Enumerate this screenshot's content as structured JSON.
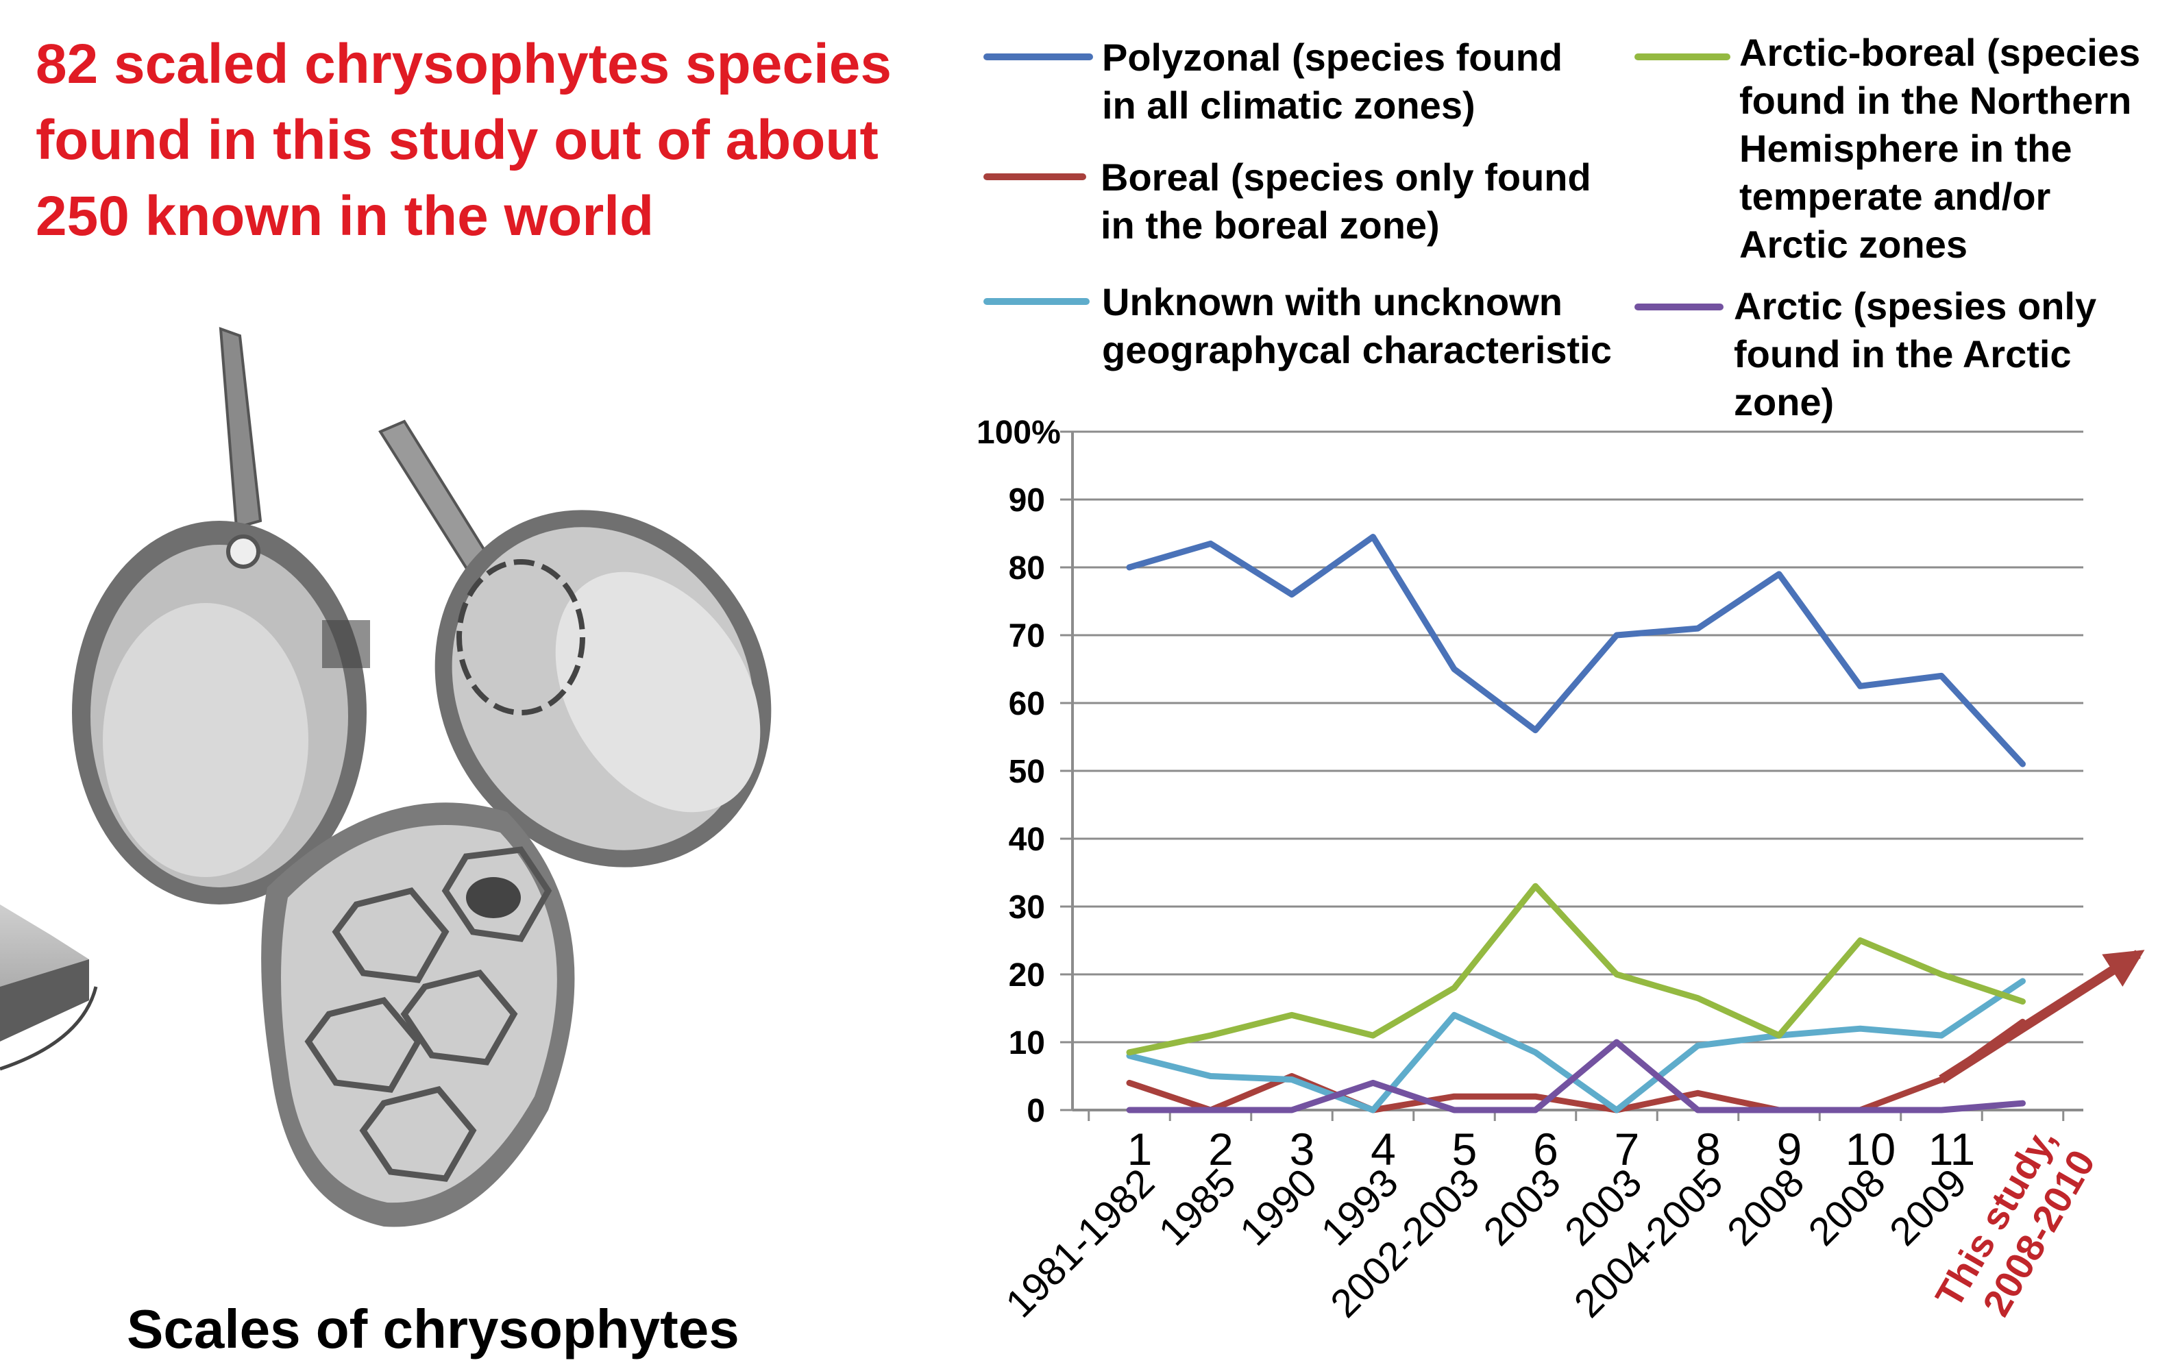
{
  "headline": "82 scaled chrysophytes species found in this study out of about 250 known in the world",
  "caption": "Scales of chrysophytes",
  "colors": {
    "headline": "#e01b24",
    "polyzonal": "#4a72b8",
    "boreal": "#a8403c",
    "unknown": "#5eaccb",
    "arctic_boreal": "#94b941",
    "arctic": "#7352a0",
    "highlight_label": "#c0262b",
    "grid": "#8c8c8c"
  },
  "legend": [
    {
      "key": "polyzonal",
      "lines": [
        "Polyzonal (species found",
        "in all climatic zones)"
      ]
    },
    {
      "key": "arctic_boreal",
      "lines": [
        "Arctic-boreal (species",
        "found in the Northern",
        "Hemisphere in the",
        "temperate and/or",
        "Arctic zones"
      ]
    },
    {
      "key": "boreal",
      "lines": [
        "Boreal (species only found",
        "in the boreal zone)"
      ]
    },
    {
      "key": "unknown",
      "lines": [
        "Unknown with uncknown",
        "geographycal characteristic"
      ]
    },
    {
      "key": "arctic",
      "lines": [
        "Arctic (spesies only",
        "found in the Arctic",
        "zone)"
      ]
    }
  ],
  "chart_data": {
    "type": "line",
    "y_unit_label": "%",
    "ylim": [
      0,
      100
    ],
    "yticks": [
      0,
      10,
      20,
      30,
      40,
      50,
      60,
      70,
      80,
      90,
      100
    ],
    "ytick_labels": [
      "0",
      "10",
      "20",
      "30",
      "40",
      "50",
      "60",
      "70",
      "80",
      "90",
      "100%"
    ],
    "x_numbers": [
      "1",
      "2",
      "3",
      "4",
      "5",
      "6",
      "7",
      "8",
      "9",
      "10",
      "11"
    ],
    "categories": [
      "1981-1982",
      "1985",
      "1990",
      "1993",
      "2002-2003",
      "2003",
      "2003",
      "2004-2005",
      "2008",
      "2008",
      "2009",
      "This study, 2008-2010"
    ],
    "highlight_category_lines": [
      "This study,",
      "2008-2010"
    ],
    "grid": true,
    "series": [
      {
        "key": "polyzonal",
        "name": "Polyzonal (species found in all climatic zones)",
        "values": [
          80,
          83.5,
          76,
          84.5,
          65,
          56,
          70,
          71,
          79,
          62.5,
          64,
          51
        ]
      },
      {
        "key": "boreal",
        "name": "Boreal (species only found in the boreal zone)",
        "values": [
          4,
          0,
          5,
          0,
          2,
          2,
          0,
          2.5,
          0,
          0,
          4.5,
          13
        ]
      },
      {
        "key": "unknown",
        "name": "Unknown with uncknown geographycal characteristic",
        "values": [
          8,
          5,
          4.5,
          0,
          14,
          8.5,
          0,
          9.5,
          11,
          12,
          11,
          19
        ]
      },
      {
        "key": "arctic_boreal",
        "name": "Arctic-boreal (species found in the Northern Hemisphere in the temperate and/or Arctic zones",
        "values": [
          8.5,
          11,
          14,
          11,
          18,
          33,
          20,
          16.5,
          11,
          25,
          20,
          16
        ]
      },
      {
        "key": "arctic",
        "name": "Arctic (spesies only found in the Arctic zone)",
        "values": [
          0,
          0,
          0,
          4,
          0,
          0,
          10,
          0,
          0,
          0,
          0,
          1
        ]
      }
    ]
  }
}
